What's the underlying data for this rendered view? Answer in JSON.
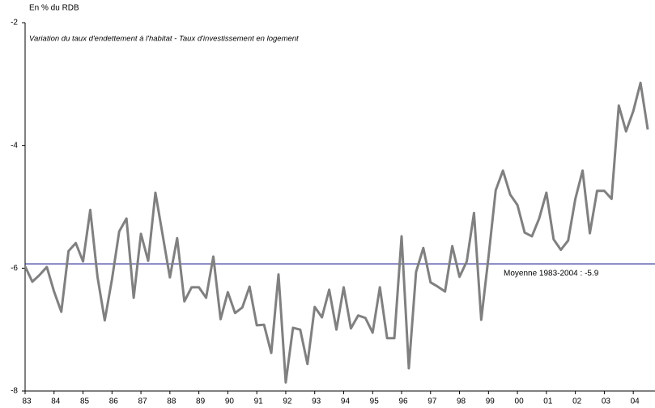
{
  "chart_data": {
    "type": "line",
    "y_label": "En % du RDB",
    "subtitle": "Variation du taux d'endettement à l'habitat - Taux d'investissement en logement",
    "x": [
      1983,
      1983.25,
      1983.5,
      1983.75,
      1984,
      1984.25,
      1984.5,
      1984.75,
      1985,
      1985.25,
      1985.5,
      1985.75,
      1986,
      1986.25,
      1986.5,
      1986.75,
      1987,
      1987.25,
      1987.5,
      1987.75,
      1988,
      1988.25,
      1988.5,
      1988.75,
      1989,
      1989.25,
      1989.5,
      1989.75,
      1990,
      1990.25,
      1990.5,
      1990.75,
      1991,
      1991.25,
      1991.5,
      1991.75,
      1992,
      1992.25,
      1992.5,
      1992.75,
      1993,
      1993.25,
      1993.5,
      1993.75,
      1994,
      1994.25,
      1994.5,
      1994.75,
      1995,
      1995.25,
      1995.5,
      1995.75,
      1996,
      1996.25,
      1996.5,
      1996.75,
      1997,
      1997.25,
      1997.5,
      1997.75,
      1998,
      1998.25,
      1998.5,
      1998.75,
      1999,
      1999.25,
      1999.5,
      1999.75,
      2000,
      2000.25,
      2000.5,
      2000.75,
      2001,
      2001.25,
      2001.5,
      2001.75,
      2002,
      2002.25,
      2002.5,
      2002.75,
      2003,
      2003.25,
      2003.5,
      2003.75,
      2004,
      2004.25,
      2004.5
    ],
    "series": [
      {
        "name": "Variation du taux d'endettement à l'habitat - Taux d'investissement en logement",
        "color": "#808080",
        "values": [
          -5.97,
          -6.22,
          -6.11,
          -5.98,
          -6.38,
          -6.71,
          -5.72,
          -5.59,
          -5.89,
          -5.05,
          -6.14,
          -6.85,
          -6.18,
          -5.4,
          -5.19,
          -6.48,
          -5.44,
          -5.88,
          -4.77,
          -5.46,
          -6.15,
          -5.51,
          -6.54,
          -6.31,
          -6.31,
          -6.48,
          -5.81,
          -6.83,
          -6.39,
          -6.73,
          -6.64,
          -6.3,
          -6.93,
          -6.92,
          -7.38,
          -6.1,
          -7.86,
          -6.97,
          -7.0,
          -7.56,
          -6.63,
          -6.8,
          -6.35,
          -7.0,
          -6.31,
          -6.98,
          -6.77,
          -6.81,
          -7.05,
          -6.31,
          -7.14,
          -7.14,
          -5.48,
          -7.63,
          -6.06,
          -5.67,
          -6.23,
          -6.3,
          -6.38,
          -5.64,
          -6.14,
          -5.89,
          -5.1,
          -6.84,
          -5.82,
          -4.73,
          -4.41,
          -4.8,
          -4.97,
          -5.42,
          -5.48,
          -5.19,
          -4.77,
          -5.53,
          -5.7,
          -5.55,
          -4.87,
          -4.41,
          -5.43,
          -4.74,
          -4.74,
          -4.87,
          -3.35,
          -3.77,
          -3.44,
          -2.98,
          -3.74
        ]
      }
    ],
    "mean": {
      "value": -5.93,
      "label": "Moyenne 1983-2004 : -5.9",
      "color": "#1f1f8f"
    },
    "xlim": [
      1983,
      2004.75
    ],
    "xticks": [
      {
        "value": 1983,
        "label": "83"
      },
      {
        "value": 1984,
        "label": "84"
      },
      {
        "value": 1985,
        "label": "85"
      },
      {
        "value": 1986,
        "label": "86"
      },
      {
        "value": 1987,
        "label": "87"
      },
      {
        "value": 1988,
        "label": "88"
      },
      {
        "value": 1989,
        "label": "89"
      },
      {
        "value": 1990,
        "label": "90"
      },
      {
        "value": 1991,
        "label": "91"
      },
      {
        "value": 1992,
        "label": "92"
      },
      {
        "value": 1993,
        "label": "93"
      },
      {
        "value": 1994,
        "label": "94"
      },
      {
        "value": 1995,
        "label": "95"
      },
      {
        "value": 1996,
        "label": "96"
      },
      {
        "value": 1997,
        "label": "97"
      },
      {
        "value": 1998,
        "label": "98"
      },
      {
        "value": 1999,
        "label": "99"
      },
      {
        "value": 2000,
        "label": "00"
      },
      {
        "value": 2001,
        "label": "01"
      },
      {
        "value": 2002,
        "label": "02"
      },
      {
        "value": 2003,
        "label": "03"
      },
      {
        "value": 2004,
        "label": "04"
      }
    ],
    "ylim": [
      -8,
      -2
    ],
    "yticks": [
      -8,
      -6,
      -4,
      -2
    ]
  }
}
